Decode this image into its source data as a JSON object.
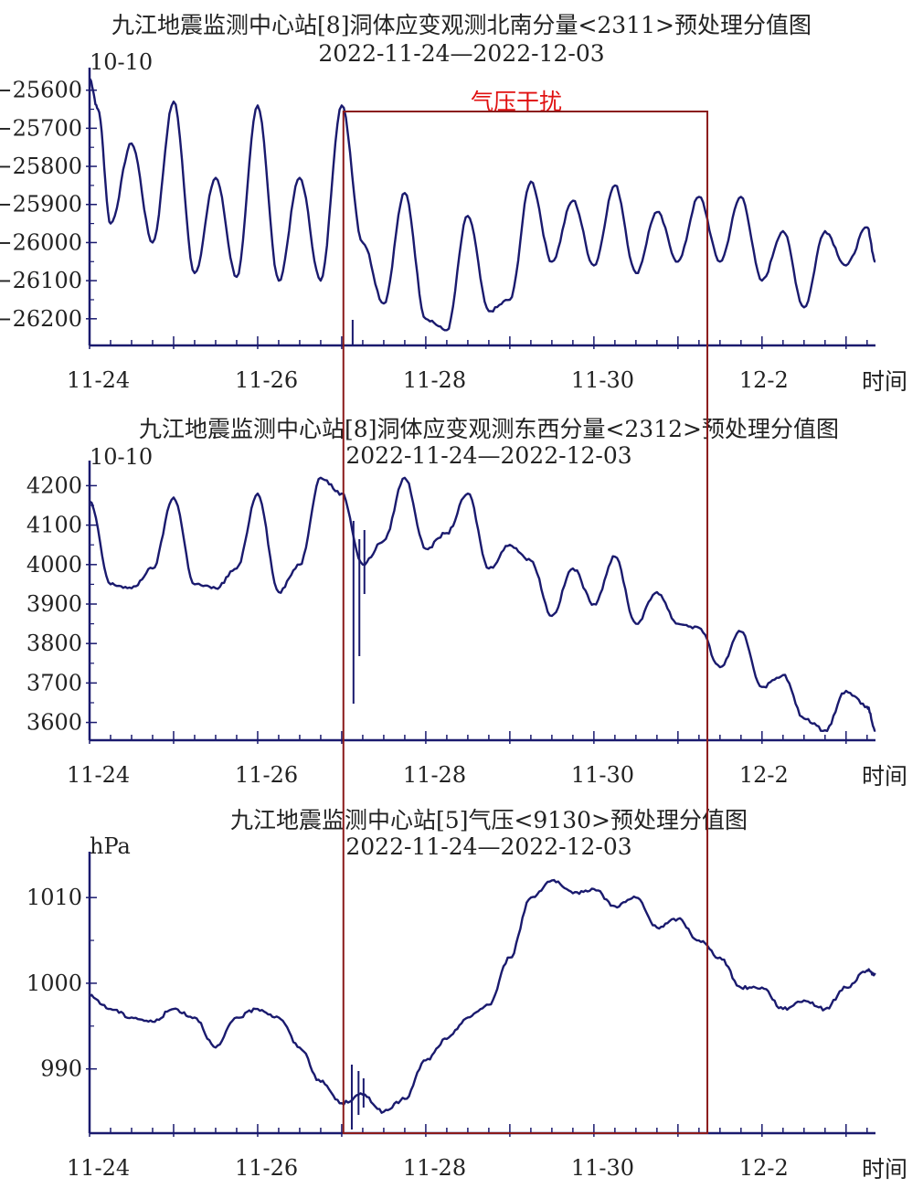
{
  "chart_data": [
    {
      "type": "line",
      "title": "九江地震监测中心站[8]洞体应变观测北南分量<2311>预处理分值图",
      "subtitle": "2022-11-24—2022-12-03",
      "unit": "10-10",
      "xlabel": "时间",
      "x_ticks": [
        "11-24",
        "11-26",
        "11-28",
        "11-30",
        "12-2"
      ],
      "y_ticks": [
        -25600,
        -25700,
        -25800,
        -25900,
        -26000,
        -26100,
        -26200
      ],
      "ylim": [
        -26270,
        -25560
      ],
      "xlim": [
        0,
        9.35
      ],
      "line_color": "#1a1a6e",
      "series": [
        {
          "x": [
            0,
            0.1,
            0.25,
            0.5,
            0.75,
            1.0,
            1.25,
            1.5,
            1.75,
            2.0,
            2.25,
            2.5,
            2.75,
            3.0,
            3.25,
            3.5,
            3.75,
            4.0,
            4.25,
            4.5,
            4.75,
            5.0,
            5.25,
            5.5,
            5.75,
            6.0,
            6.25,
            6.5,
            6.75,
            7.0,
            7.25,
            7.5,
            7.75,
            8.0,
            8.25,
            8.5,
            8.75,
            9.0,
            9.25,
            9.35
          ],
          "y": [
            -25570,
            -25650,
            -25950,
            -25740,
            -26000,
            -25630,
            -26080,
            -25830,
            -26090,
            -25640,
            -26100,
            -25830,
            -26100,
            -25640,
            -26000,
            -26160,
            -25870,
            -26200,
            -26230,
            -25930,
            -26180,
            -26150,
            -25840,
            -26050,
            -25890,
            -26060,
            -25850,
            -26080,
            -25920,
            -26050,
            -25880,
            -26050,
            -25880,
            -26100,
            -25970,
            -26170,
            -25970,
            -26060,
            -25960,
            -26050
          ]
        }
      ]
    },
    {
      "type": "line",
      "title": "九江地震监测中心站[8]洞体应变观测东西分量<2312>预处理分值图",
      "subtitle": "2022-11-24—2022-12-03",
      "unit": "10-10",
      "xlabel": "时间",
      "x_ticks": [
        "11-24",
        "11-26",
        "11-28",
        "11-30",
        "12-2"
      ],
      "y_ticks": [
        4200,
        4100,
        4000,
        3900,
        3800,
        3700,
        3600
      ],
      "ylim": [
        3555,
        4245
      ],
      "xlim": [
        0,
        9.35
      ],
      "line_color": "#1a1a6e",
      "series": [
        {
          "x": [
            0,
            0.25,
            0.5,
            0.75,
            1.0,
            1.25,
            1.5,
            1.75,
            2.0,
            2.25,
            2.5,
            2.75,
            3.0,
            3.25,
            3.5,
            3.75,
            4.0,
            4.25,
            4.5,
            4.75,
            5.0,
            5.25,
            5.5,
            5.75,
            6.0,
            6.25,
            6.5,
            6.75,
            7.0,
            7.25,
            7.5,
            7.75,
            8.0,
            8.25,
            8.5,
            8.75,
            9.0,
            9.25,
            9.35
          ],
          "y": [
            4160,
            3950,
            3940,
            3990,
            4170,
            3950,
            3940,
            3990,
            4180,
            3930,
            4000,
            4220,
            4180,
            4000,
            4060,
            4220,
            4040,
            4080,
            4180,
            3990,
            4050,
            4010,
            3870,
            3990,
            3900,
            4020,
            3850,
            3930,
            3850,
            3840,
            3740,
            3830,
            3690,
            3720,
            3610,
            3580,
            3680,
            3640,
            3580
          ]
        }
      ]
    },
    {
      "type": "line",
      "title": "九江地震监测中心站[5]气压<9130>预处理分值图",
      "subtitle": "2022-11-24—2022-12-03",
      "unit": "hPa",
      "xlabel": "时间",
      "x_ticks": [
        "11-24",
        "11-26",
        "11-28",
        "11-30",
        "12-2"
      ],
      "y_ticks": [
        1010,
        1000,
        990
      ],
      "ylim": [
        982.5,
        1014.5
      ],
      "xlim": [
        0,
        9.35
      ],
      "line_color": "#1a1a6e",
      "series": [
        {
          "x": [
            0,
            0.25,
            0.5,
            0.75,
            1.0,
            1.25,
            1.5,
            1.75,
            2.0,
            2.25,
            2.5,
            2.75,
            3.0,
            3.25,
            3.5,
            3.75,
            4.0,
            4.25,
            4.5,
            4.75,
            5.0,
            5.25,
            5.5,
            5.75,
            6.0,
            6.25,
            6.5,
            6.75,
            7.0,
            7.25,
            7.5,
            7.75,
            8.0,
            8.25,
            8.5,
            8.75,
            9.0,
            9.25,
            9.35
          ],
          "y": [
            998.5,
            997,
            996,
            995.5,
            997,
            996,
            992.5,
            996,
            997,
            996,
            992.5,
            988.5,
            986,
            987,
            985,
            986.5,
            991,
            993.5,
            996,
            997.5,
            1003,
            1010,
            1012,
            1010.5,
            1011,
            1009,
            1010,
            1006.5,
            1007.5,
            1005,
            1003,
            999.5,
            999.5,
            997,
            998,
            997,
            999.5,
            1001.5,
            1001
          ]
        }
      ]
    }
  ],
  "annotation": {
    "label": "气压干扰",
    "color": "#e01010",
    "box_color": "#8b1a1a",
    "x_start": 3.02,
    "x_end": 7.35
  }
}
